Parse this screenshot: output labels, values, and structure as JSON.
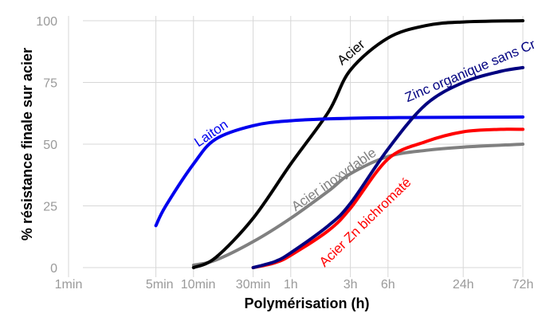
{
  "chart_data": {
    "type": "line",
    "xlabel": "Polymérisation (h)",
    "ylabel": "% résistance finale sur acier",
    "ylim": [
      0,
      100
    ],
    "x_scale": "log",
    "x_ticks": [
      {
        "label": "1min",
        "hours": 0.016667
      },
      {
        "label": "5min",
        "hours": 0.083333
      },
      {
        "label": "10min",
        "hours": 0.166667
      },
      {
        "label": "30min",
        "hours": 0.5
      },
      {
        "label": "1h",
        "hours": 1
      },
      {
        "label": "3h",
        "hours": 3
      },
      {
        "label": "6h",
        "hours": 6
      },
      {
        "label": "24h",
        "hours": 24
      },
      {
        "label": "72h",
        "hours": 72
      }
    ],
    "y_ticks": [
      {
        "label": "0",
        "value": 0
      },
      {
        "label": "25",
        "value": 25
      },
      {
        "label": "50",
        "value": 50
      },
      {
        "label": "75",
        "value": 75
      },
      {
        "label": "100",
        "value": 100
      }
    ],
    "grid": true,
    "legend": "inline labels",
    "series": [
      {
        "name": "Acier",
        "color": "#000000",
        "points": [
          [
            0.1667,
            0
          ],
          [
            0.25,
            4
          ],
          [
            0.5,
            20
          ],
          [
            1,
            42
          ],
          [
            2,
            63
          ],
          [
            3,
            80
          ],
          [
            6,
            93
          ],
          [
            12,
            98
          ],
          [
            24,
            99.5
          ],
          [
            72,
            100
          ]
        ]
      },
      {
        "name": "Zinc organique sans Cr",
        "color": "#000080",
        "points": [
          [
            0.5,
            0
          ],
          [
            0.75,
            2.5
          ],
          [
            1,
            6
          ],
          [
            2,
            17
          ],
          [
            3,
            26
          ],
          [
            6,
            48
          ],
          [
            12,
            66
          ],
          [
            24,
            75
          ],
          [
            48,
            79.5
          ],
          [
            72,
            81
          ]
        ]
      },
      {
        "name": "Laiton",
        "color": "#0000ee",
        "points": [
          [
            0.0833,
            17
          ],
          [
            0.1,
            25
          ],
          [
            0.1667,
            42
          ],
          [
            0.25,
            52
          ],
          [
            0.5,
            57.5
          ],
          [
            1,
            59.5
          ],
          [
            3,
            60.5
          ],
          [
            10,
            60.8
          ],
          [
            72,
            61
          ]
        ]
      },
      {
        "name": "Acier inoxydable",
        "color": "#808080",
        "points": [
          [
            0.1667,
            1
          ],
          [
            0.25,
            3
          ],
          [
            0.5,
            10.5
          ],
          [
            1,
            20
          ],
          [
            2,
            31
          ],
          [
            3,
            38
          ],
          [
            6,
            45
          ],
          [
            12,
            47.5
          ],
          [
            24,
            48.8
          ],
          [
            72,
            50
          ]
        ]
      },
      {
        "name": "Acier Zn bichromaté",
        "color": "#ff0000",
        "points": [
          [
            0.5,
            0
          ],
          [
            0.75,
            2
          ],
          [
            1,
            5
          ],
          [
            2,
            15
          ],
          [
            3,
            24
          ],
          [
            6,
            44
          ],
          [
            12,
            51
          ],
          [
            24,
            55
          ],
          [
            48,
            56
          ],
          [
            72,
            56
          ]
        ]
      }
    ]
  }
}
